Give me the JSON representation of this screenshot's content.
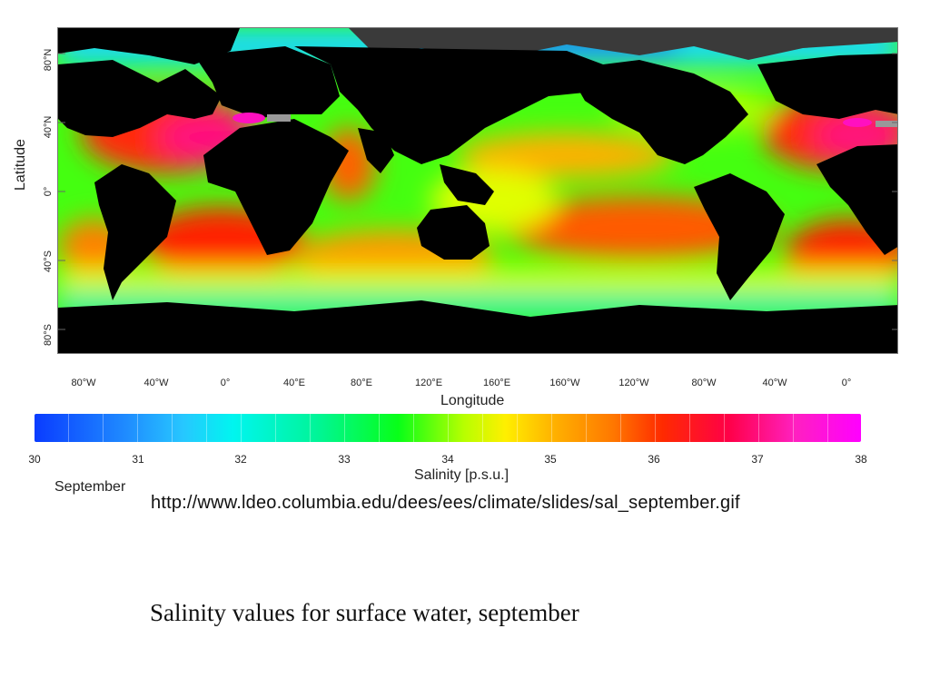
{
  "map": {
    "y_axis_label": "Latitude",
    "x_axis_label": "Longitude",
    "latitude_ticks": [
      "80°N",
      "40°N",
      "0°",
      "40°S",
      "80°S"
    ],
    "longitude_ticks": [
      "80°W",
      "40°W",
      "0°",
      "40°E",
      "80°E",
      "120°E",
      "160°E",
      "160°W",
      "120°W",
      "80°W",
      "40°W",
      "0°"
    ],
    "colors": {
      "land": "#000000",
      "ice": "#555555",
      "fresh": "#1a6bff",
      "low": "#00ff30",
      "mid": "#ffe000",
      "high": "#ff2a00",
      "max": "#ff00e0"
    }
  },
  "colorbar": {
    "title": "Salinity [p.s.u.]",
    "ticks": [
      "30",
      "31",
      "32",
      "33",
      "34",
      "35",
      "36",
      "37",
      "38"
    ]
  },
  "figure": {
    "month_label": "September",
    "source_url": "http://www.ldeo.columbia.edu/dees/ees/climate/slides/sal_september.gif"
  },
  "slide": {
    "caption": "Salinity values for surface water, september"
  }
}
